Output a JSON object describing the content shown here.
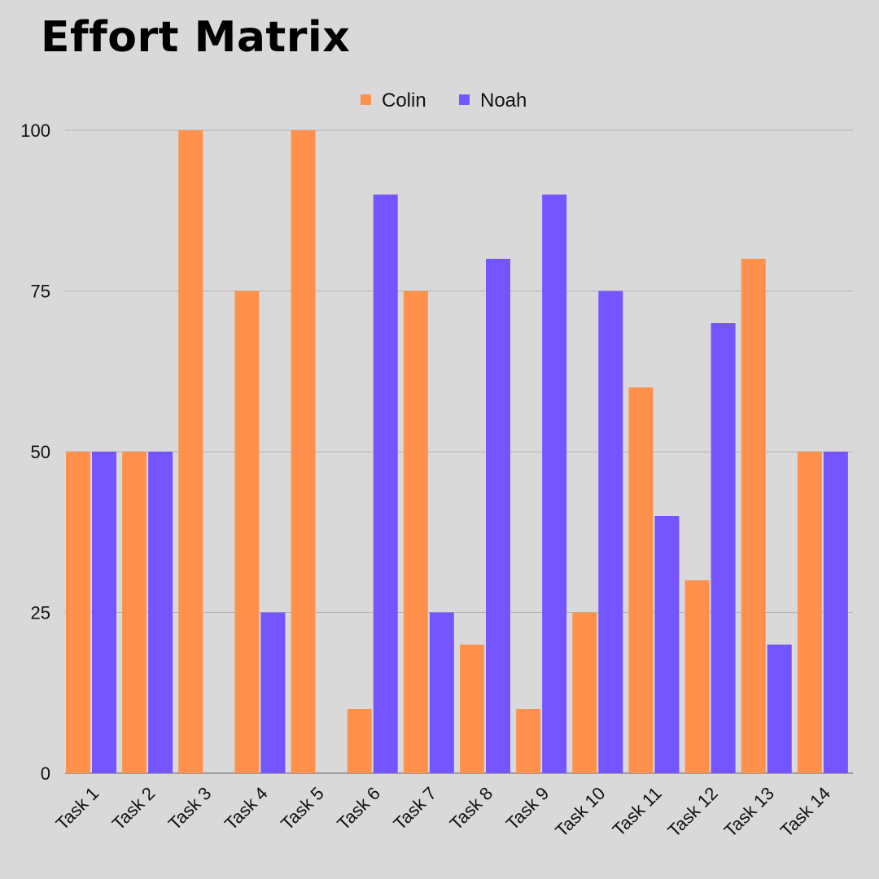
{
  "chart_data": {
    "type": "bar",
    "title": "Effort Matrix",
    "xlabel": "",
    "ylabel": "",
    "categories": [
      "Task 1",
      "Task 2",
      "Task 3",
      "Task 4",
      "Task 5",
      "Task 6",
      "Task 7",
      "Task 8",
      "Task 9",
      "Task 10",
      "Task 11",
      "Task 12",
      "Task 13",
      "Task 14"
    ],
    "series": [
      {
        "name": "Colin",
        "color": "#ff914d",
        "values": [
          50,
          50,
          100,
          75,
          100,
          10,
          75,
          20,
          10,
          25,
          60,
          30,
          80,
          50
        ]
      },
      {
        "name": "Noah",
        "color": "#7455ff",
        "values": [
          50,
          50,
          0,
          25,
          0,
          90,
          25,
          80,
          90,
          75,
          40,
          70,
          20,
          50
        ]
      }
    ],
    "ylim": [
      0,
      100
    ],
    "yticks": [
      0,
      25,
      50,
      75,
      100
    ],
    "grid": true,
    "legend": "top-center"
  }
}
